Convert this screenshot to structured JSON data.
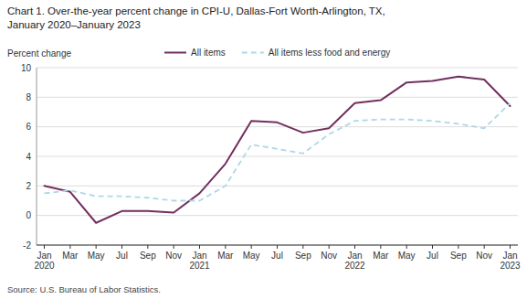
{
  "chart_data": {
    "type": "line",
    "title": "Chart 1. Over-the-year percent change in CPI-U, Dallas-Fort Worth-Arlington, TX,\nJanuary 2020–January 2023",
    "y_label": "Percent change",
    "source": "Source: U.S. Bureau of Labor Statistics.",
    "categories": [
      "Jan\n2020",
      "Mar",
      "May",
      "Jul",
      "Sep",
      "Nov",
      "Jan\n2021",
      "Mar",
      "May",
      "Jul",
      "Sep",
      "Nov",
      "Jan\n2022",
      "Mar",
      "May",
      "Jul",
      "Sep",
      "Nov",
      "Jan\n2023"
    ],
    "series": [
      {
        "name": "All items",
        "color": "#722F5E",
        "line_style": "solid",
        "values": [
          2.0,
          1.6,
          -0.5,
          0.3,
          0.3,
          0.2,
          1.5,
          3.5,
          6.4,
          6.3,
          5.6,
          5.9,
          7.6,
          7.8,
          9.0,
          9.1,
          9.4,
          9.2,
          7.4
        ]
      },
      {
        "name": "All items less food and energy",
        "color": "#ADD8E6",
        "line_style": "dashed",
        "values": [
          1.5,
          1.7,
          1.3,
          1.3,
          1.2,
          1.0,
          1.0,
          2.0,
          4.8,
          4.5,
          4.2,
          5.5,
          6.4,
          6.5,
          6.5,
          6.4,
          6.2,
          5.9,
          7.6
        ]
      }
    ],
    "ylim": [
      -2,
      10
    ],
    "yticks": [
      -2,
      0,
      2,
      4,
      6,
      8,
      10
    ],
    "grid": true,
    "legend": "top"
  }
}
